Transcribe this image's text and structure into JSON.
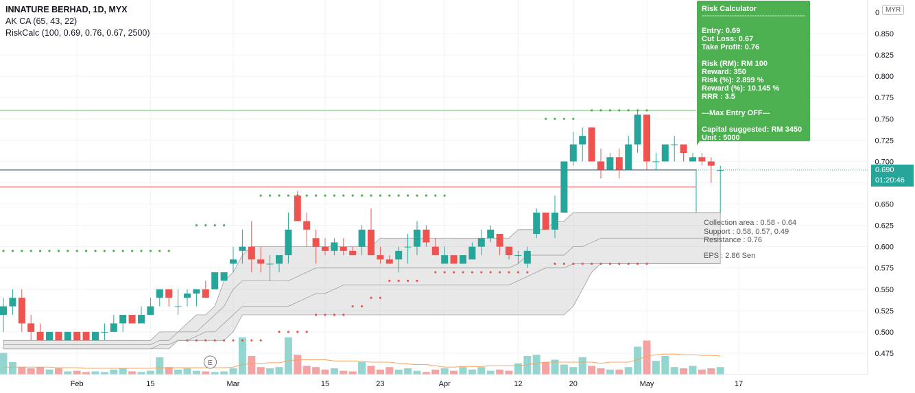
{
  "legend": {
    "title": "INNATURE BERHAD, 1D, MYX",
    "indicator1": "AK CA (65, 43, 22)",
    "indicator2": "RiskCalc (100, 0.69, 0.76, 0.67, 2500)"
  },
  "risk_calc": {
    "title": "Risk Calculator",
    "separator": "-----------------------------------------------",
    "entry": "Entry: 0.69",
    "cut_loss": "Cut Loss: 0.67",
    "take_profit": "Take Profit: 0.76",
    "risk_rm": "Risk (RM): RM 100",
    "reward": "Reward: 350",
    "risk_pct": "Risk (%): 2.899 %",
    "reward_pct": "Reward (%): 10.145 %",
    "rrr": "RRR : 3.5",
    "max_entry": "---Max Entry OFF---",
    "capital": "Capital suggested: RM 3450",
    "unit": "Unit : 5000"
  },
  "info": {
    "collection": "Collection area : 0.58 - 0.64",
    "support": "Support : 0.58,  0.57,  0.49",
    "resistance": "Resistance : 0.76",
    "eps": "EPS : 2.86 Sen"
  },
  "price_tag": {
    "price": "0.690",
    "countdown": "01:20:46"
  },
  "currency": "MYR",
  "earnings_marker": "E",
  "colors": {
    "up": "#26a69a",
    "down": "#ef5350",
    "up_vol": "#94d6cf",
    "down_vol": "#f5a3a2",
    "green_dot": "#4caf50",
    "red_dot": "#ef5350",
    "ma": "#f7a35c",
    "band": "#cfcfcf"
  },
  "chart_data": {
    "type": "candlestick",
    "y_axis": {
      "min": 0.45,
      "max": 0.875,
      "ticks": [
        "0.475",
        "0.500",
        "0.525",
        "0.550",
        "0.575",
        "0.600",
        "0.625",
        "0.650",
        "0.675",
        "0.700",
        "0.725",
        "0.750",
        "0.775",
        "0.800",
        "0.825",
        "0.850"
      ],
      "top_label": "0"
    },
    "x_axis": {
      "labels": [
        {
          "label": "Feb",
          "i": 8
        },
        {
          "label": "15",
          "i": 16
        },
        {
          "label": "Mar",
          "i": 25
        },
        {
          "label": "15",
          "i": 35
        },
        {
          "label": "23",
          "i": 41
        },
        {
          "label": "Apr",
          "i": 48
        },
        {
          "label": "12",
          "i": 56
        },
        {
          "label": "20",
          "i": 62
        },
        {
          "label": "May",
          "i": 70
        },
        {
          "label": "17",
          "i": 80
        }
      ]
    },
    "candles": [
      {
        "o": 0.52,
        "h": 0.54,
        "l": 0.5,
        "c": 0.53
      },
      {
        "o": 0.53,
        "h": 0.55,
        "l": 0.52,
        "c": 0.54
      },
      {
        "o": 0.54,
        "h": 0.55,
        "l": 0.5,
        "c": 0.51
      },
      {
        "o": 0.51,
        "h": 0.52,
        "l": 0.49,
        "c": 0.5
      },
      {
        "o": 0.5,
        "h": 0.51,
        "l": 0.49,
        "c": 0.49
      },
      {
        "o": 0.49,
        "h": 0.5,
        "l": 0.49,
        "c": 0.5
      },
      {
        "o": 0.5,
        "h": 0.5,
        "l": 0.49,
        "c": 0.49
      },
      {
        "o": 0.49,
        "h": 0.5,
        "l": 0.49,
        "c": 0.5
      },
      {
        "o": 0.5,
        "h": 0.5,
        "l": 0.49,
        "c": 0.49
      },
      {
        "o": 0.5,
        "h": 0.5,
        "l": 0.49,
        "c": 0.49
      },
      {
        "o": 0.49,
        "h": 0.5,
        "l": 0.49,
        "c": 0.5
      },
      {
        "o": 0.5,
        "h": 0.51,
        "l": 0.49,
        "c": 0.5
      },
      {
        "o": 0.5,
        "h": 0.52,
        "l": 0.5,
        "c": 0.51
      },
      {
        "o": 0.51,
        "h": 0.52,
        "l": 0.5,
        "c": 0.52
      },
      {
        "o": 0.52,
        "h": 0.52,
        "l": 0.51,
        "c": 0.51
      },
      {
        "o": 0.51,
        "h": 0.53,
        "l": 0.51,
        "c": 0.52
      },
      {
        "o": 0.52,
        "h": 0.54,
        "l": 0.52,
        "c": 0.53
      },
      {
        "o": 0.54,
        "h": 0.55,
        "l": 0.53,
        "c": 0.55
      },
      {
        "o": 0.55,
        "h": 0.55,
        "l": 0.53,
        "c": 0.54
      },
      {
        "o": 0.53,
        "h": 0.55,
        "l": 0.52,
        "c": 0.53
      },
      {
        "o": 0.54,
        "h": 0.55,
        "l": 0.53,
        "c": 0.545
      },
      {
        "o": 0.545,
        "h": 0.55,
        "l": 0.53,
        "c": 0.55
      },
      {
        "o": 0.55,
        "h": 0.56,
        "l": 0.54,
        "c": 0.54
      },
      {
        "o": 0.55,
        "h": 0.57,
        "l": 0.55,
        "c": 0.57
      },
      {
        "o": 0.56,
        "h": 0.57,
        "l": 0.56,
        "c": 0.57
      },
      {
        "o": 0.58,
        "h": 0.6,
        "l": 0.57,
        "c": 0.585
      },
      {
        "o": 0.595,
        "h": 0.62,
        "l": 0.58,
        "c": 0.6
      },
      {
        "o": 0.6,
        "h": 0.63,
        "l": 0.57,
        "c": 0.585
      },
      {
        "o": 0.585,
        "h": 0.6,
        "l": 0.57,
        "c": 0.58
      },
      {
        "o": 0.58,
        "h": 0.59,
        "l": 0.56,
        "c": 0.58
      },
      {
        "o": 0.58,
        "h": 0.59,
        "l": 0.57,
        "c": 0.59
      },
      {
        "o": 0.59,
        "h": 0.64,
        "l": 0.58,
        "c": 0.62
      },
      {
        "o": 0.66,
        "h": 0.665,
        "l": 0.63,
        "c": 0.63
      },
      {
        "o": 0.63,
        "h": 0.64,
        "l": 0.6,
        "c": 0.62
      },
      {
        "o": 0.61,
        "h": 0.62,
        "l": 0.58,
        "c": 0.6
      },
      {
        "o": 0.6,
        "h": 0.61,
        "l": 0.59,
        "c": 0.595
      },
      {
        "o": 0.595,
        "h": 0.61,
        "l": 0.59,
        "c": 0.605
      },
      {
        "o": 0.6,
        "h": 0.61,
        "l": 0.59,
        "c": 0.595
      },
      {
        "o": 0.595,
        "h": 0.6,
        "l": 0.59,
        "c": 0.59
      },
      {
        "o": 0.6,
        "h": 0.625,
        "l": 0.59,
        "c": 0.62
      },
      {
        "o": 0.62,
        "h": 0.645,
        "l": 0.59,
        "c": 0.59
      },
      {
        "o": 0.59,
        "h": 0.6,
        "l": 0.58,
        "c": 0.585
      },
      {
        "o": 0.585,
        "h": 0.59,
        "l": 0.58,
        "c": 0.58
      },
      {
        "o": 0.585,
        "h": 0.6,
        "l": 0.57,
        "c": 0.595
      },
      {
        "o": 0.6,
        "h": 0.615,
        "l": 0.58,
        "c": 0.6
      },
      {
        "o": 0.6,
        "h": 0.63,
        "l": 0.59,
        "c": 0.62
      },
      {
        "o": 0.62,
        "h": 0.625,
        "l": 0.6,
        "c": 0.605
      },
      {
        "o": 0.6,
        "h": 0.61,
        "l": 0.59,
        "c": 0.59
      },
      {
        "o": 0.58,
        "h": 0.6,
        "l": 0.58,
        "c": 0.59
      },
      {
        "o": 0.59,
        "h": 0.59,
        "l": 0.58,
        "c": 0.58
      },
      {
        "o": 0.58,
        "h": 0.59,
        "l": 0.58,
        "c": 0.59
      },
      {
        "o": 0.585,
        "h": 0.605,
        "l": 0.585,
        "c": 0.6
      },
      {
        "o": 0.6,
        "h": 0.62,
        "l": 0.59,
        "c": 0.61
      },
      {
        "o": 0.61,
        "h": 0.625,
        "l": 0.605,
        "c": 0.62
      },
      {
        "o": 0.615,
        "h": 0.615,
        "l": 0.59,
        "c": 0.6
      },
      {
        "o": 0.6,
        "h": 0.6,
        "l": 0.585,
        "c": 0.59
      },
      {
        "o": 0.59,
        "h": 0.595,
        "l": 0.58,
        "c": 0.59
      },
      {
        "o": 0.58,
        "h": 0.6,
        "l": 0.575,
        "c": 0.595
      },
      {
        "o": 0.615,
        "h": 0.645,
        "l": 0.61,
        "c": 0.64
      },
      {
        "o": 0.64,
        "h": 0.64,
        "l": 0.62,
        "c": 0.62
      },
      {
        "o": 0.62,
        "h": 0.66,
        "l": 0.61,
        "c": 0.64
      },
      {
        "o": 0.64,
        "h": 0.7,
        "l": 0.64,
        "c": 0.7
      },
      {
        "o": 0.7,
        "h": 0.735,
        "l": 0.695,
        "c": 0.72
      },
      {
        "o": 0.72,
        "h": 0.74,
        "l": 0.7,
        "c": 0.73
      },
      {
        "o": 0.74,
        "h": 0.74,
        "l": 0.7,
        "c": 0.7
      },
      {
        "o": 0.7,
        "h": 0.715,
        "l": 0.68,
        "c": 0.69
      },
      {
        "o": 0.69,
        "h": 0.71,
        "l": 0.69,
        "c": 0.705
      },
      {
        "o": 0.705,
        "h": 0.715,
        "l": 0.68,
        "c": 0.69
      },
      {
        "o": 0.69,
        "h": 0.73,
        "l": 0.69,
        "c": 0.72
      },
      {
        "o": 0.72,
        "h": 0.76,
        "l": 0.71,
        "c": 0.755
      },
      {
        "o": 0.755,
        "h": 0.755,
        "l": 0.69,
        "c": 0.7
      },
      {
        "o": 0.7,
        "h": 0.71,
        "l": 0.69,
        "c": 0.7
      },
      {
        "o": 0.7,
        "h": 0.72,
        "l": 0.7,
        "c": 0.72
      },
      {
        "o": 0.72,
        "h": 0.73,
        "l": 0.7,
        "c": 0.72
      },
      {
        "o": 0.72,
        "h": 0.72,
        "l": 0.7,
        "c": 0.71
      },
      {
        "o": 0.7,
        "h": 0.71,
        "l": 0.7,
        "c": 0.705
      },
      {
        "o": 0.705,
        "h": 0.71,
        "l": 0.695,
        "c": 0.7
      },
      {
        "o": 0.7,
        "h": 0.705,
        "l": 0.675,
        "c": 0.695
      },
      {
        "o": 0.69,
        "h": 0.695,
        "l": 0.64,
        "c": 0.69
      }
    ],
    "volume_scale_max": 1.0,
    "volumes": [
      0.35,
      0.2,
      0.12,
      0.1,
      0.12,
      0.08,
      0.1,
      0.05,
      0.06,
      0.04,
      0.05,
      0.04,
      0.08,
      0.1,
      0.05,
      0.04,
      0.06,
      0.28,
      0.12,
      0.08,
      0.1,
      0.06,
      0.05,
      0.04,
      0.05,
      0.1,
      0.6,
      0.3,
      0.12,
      0.1,
      0.12,
      0.6,
      0.32,
      0.14,
      0.12,
      0.08,
      0.1,
      0.06,
      0.05,
      0.2,
      0.14,
      0.08,
      0.12,
      0.08,
      0.1,
      0.06,
      0.04,
      0.08,
      0.1,
      0.06,
      0.12,
      0.08,
      0.12,
      0.06,
      0.08,
      0.06,
      0.18,
      0.3,
      0.32,
      0.2,
      0.24,
      0.16,
      0.12,
      0.28,
      0.14,
      0.1,
      0.08,
      0.08,
      0.12,
      0.45,
      0.55,
      0.22,
      0.3,
      0.12,
      0.1,
      0.14,
      0.08,
      0.1,
      0.12
    ],
    "ma_volume": [
      0.12,
      0.12,
      0.12,
      0.12,
      0.12,
      0.12,
      0.11,
      0.11,
      0.11,
      0.1,
      0.1,
      0.1,
      0.1,
      0.1,
      0.1,
      0.1,
      0.1,
      0.11,
      0.11,
      0.11,
      0.11,
      0.11,
      0.11,
      0.11,
      0.11,
      0.12,
      0.16,
      0.18,
      0.18,
      0.19,
      0.19,
      0.22,
      0.24,
      0.24,
      0.24,
      0.24,
      0.22,
      0.22,
      0.22,
      0.21,
      0.2,
      0.2,
      0.2,
      0.18,
      0.17,
      0.16,
      0.16,
      0.14,
      0.12,
      0.12,
      0.13,
      0.13,
      0.13,
      0.14,
      0.14,
      0.14,
      0.14,
      0.16,
      0.18,
      0.2,
      0.2,
      0.2,
      0.2,
      0.2,
      0.2,
      0.18,
      0.2,
      0.2,
      0.2,
      0.24,
      0.3,
      0.32,
      0.33,
      0.33,
      0.32,
      0.32,
      0.31,
      0.31,
      0.3
    ],
    "band_upper": [
      0.49,
      0.49,
      0.49,
      0.49,
      0.49,
      0.49,
      0.49,
      0.49,
      0.49,
      0.49,
      0.49,
      0.49,
      0.49,
      0.49,
      0.49,
      0.49,
      0.49,
      0.5,
      0.5,
      0.5,
      0.51,
      0.52,
      0.52,
      0.53,
      0.56,
      0.57,
      0.59,
      0.6,
      0.6,
      0.6,
      0.6,
      0.6,
      0.6,
      0.6,
      0.6,
      0.6,
      0.6,
      0.6,
      0.6,
      0.6,
      0.6,
      0.61,
      0.61,
      0.61,
      0.61,
      0.61,
      0.61,
      0.61,
      0.61,
      0.61,
      0.61,
      0.61,
      0.61,
      0.61,
      0.61,
      0.61,
      0.62,
      0.62,
      0.62,
      0.62,
      0.63,
      0.63,
      0.64,
      0.64,
      0.64,
      0.64,
      0.64,
      0.64,
      0.64,
      0.64,
      0.64,
      0.64,
      0.64,
      0.64,
      0.64,
      0.64,
      0.64,
      0.64,
      0.64
    ],
    "band_lower": [
      0.48,
      0.48,
      0.48,
      0.48,
      0.48,
      0.48,
      0.48,
      0.48,
      0.48,
      0.48,
      0.48,
      0.48,
      0.48,
      0.48,
      0.48,
      0.48,
      0.48,
      0.48,
      0.48,
      0.49,
      0.49,
      0.49,
      0.49,
      0.49,
      0.49,
      0.5,
      0.52,
      0.52,
      0.52,
      0.52,
      0.52,
      0.52,
      0.52,
      0.52,
      0.52,
      0.52,
      0.52,
      0.52,
      0.52,
      0.52,
      0.52,
      0.52,
      0.52,
      0.52,
      0.52,
      0.52,
      0.52,
      0.52,
      0.52,
      0.52,
      0.52,
      0.52,
      0.52,
      0.52,
      0.52,
      0.52,
      0.52,
      0.52,
      0.52,
      0.52,
      0.52,
      0.52,
      0.53,
      0.55,
      0.57,
      0.58,
      0.58,
      0.58,
      0.58,
      0.58,
      0.58,
      0.58,
      0.58,
      0.58,
      0.58,
      0.58,
      0.58,
      0.58,
      0.58
    ],
    "inner_line1": [
      0.485,
      0.485,
      0.485,
      0.485,
      0.485,
      0.485,
      0.485,
      0.485,
      0.485,
      0.485,
      0.485,
      0.485,
      0.485,
      0.485,
      0.485,
      0.485,
      0.485,
      0.49,
      0.49,
      0.5,
      0.5,
      0.5,
      0.51,
      0.52,
      0.53,
      0.55,
      0.56,
      0.56,
      0.56,
      0.56,
      0.56,
      0.56,
      0.565,
      0.57,
      0.575,
      0.575,
      0.575,
      0.575,
      0.575,
      0.575,
      0.575,
      0.575,
      0.575,
      0.575,
      0.575,
      0.575,
      0.575,
      0.575,
      0.575,
      0.575,
      0.575,
      0.575,
      0.575,
      0.575,
      0.575,
      0.575,
      0.58,
      0.59,
      0.59,
      0.59,
      0.59,
      0.59,
      0.6,
      0.6,
      0.605,
      0.61,
      0.61,
      0.61,
      0.61,
      0.61,
      0.61,
      0.61,
      0.61,
      0.61,
      0.61,
      0.61,
      0.61,
      0.61,
      0.61
    ],
    "inner_line2": [
      0.48,
      0.48,
      0.48,
      0.48,
      0.48,
      0.48,
      0.48,
      0.48,
      0.48,
      0.48,
      0.48,
      0.48,
      0.48,
      0.48,
      0.48,
      0.48,
      0.48,
      0.485,
      0.485,
      0.49,
      0.49,
      0.495,
      0.5,
      0.5,
      0.51,
      0.52,
      0.53,
      0.53,
      0.53,
      0.53,
      0.53,
      0.53,
      0.535,
      0.54,
      0.545,
      0.545,
      0.55,
      0.555,
      0.555,
      0.555,
      0.555,
      0.555,
      0.555,
      0.555,
      0.555,
      0.555,
      0.555,
      0.555,
      0.555,
      0.555,
      0.555,
      0.555,
      0.555,
      0.555,
      0.555,
      0.555,
      0.56,
      0.565,
      0.57,
      0.575,
      0.575,
      0.575,
      0.58,
      0.58,
      0.58,
      0.58,
      0.58,
      0.58,
      0.58,
      0.58,
      0.58,
      0.58,
      0.58,
      0.58,
      0.58,
      0.58,
      0.58,
      0.58,
      0.58
    ],
    "green_dots": [
      {
        "i0": 0,
        "i1": 18,
        "v": 0.595
      },
      {
        "i0": 21,
        "i1": 24,
        "v": 0.625
      },
      {
        "i0": 28,
        "i1": 48,
        "v": 0.66
      },
      {
        "i0": 59,
        "i1": 62,
        "v": 0.75
      },
      {
        "i0": 64,
        "i1": 70,
        "v": 0.76
      }
    ],
    "red_dots": [
      {
        "i0": 20,
        "i1": 28,
        "v": 0.49
      },
      {
        "i0": 30,
        "i1": 33,
        "v": 0.5
      },
      {
        "i0": 34,
        "i1": 37,
        "v": 0.52
      },
      {
        "i0": 38,
        "i1": 39,
        "v": 0.53
      },
      {
        "i0": 40,
        "i1": 41,
        "v": 0.54
      },
      {
        "i0": 42,
        "i1": 45,
        "v": 0.56
      },
      {
        "i0": 47,
        "i1": 57,
        "v": 0.57
      },
      {
        "i0": 60,
        "i1": 70,
        "v": 0.58
      }
    ],
    "levels": {
      "entry": 0.69,
      "cut_loss": 0.67,
      "take_profit": 0.76
    }
  }
}
